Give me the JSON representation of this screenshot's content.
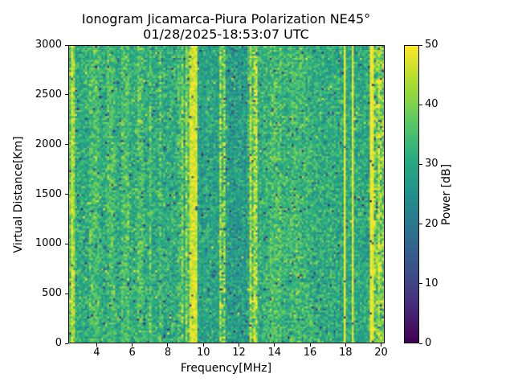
{
  "figure": {
    "title_line1": "Ionogram Jicamarca-Piura Polarization NE45°",
    "title_line2": "01/28/2025-18:53:07 UTC",
    "background_color": "#ffffff",
    "text_color": "#000000"
  },
  "axes": {
    "xlabel": "Frequency[MHz]",
    "ylabel": "Virtual Distance[Km]",
    "x_ticks": [
      4,
      6,
      8,
      10,
      12,
      14,
      16,
      18,
      20
    ],
    "y_ticks": [
      0,
      500,
      1000,
      1500,
      2000,
      2500,
      3000
    ],
    "x_range": [
      2.4,
      20.2
    ],
    "y_range": [
      0,
      3000
    ]
  },
  "colorbar": {
    "label": "Power [dB]",
    "ticks": [
      0,
      10,
      20,
      30,
      40,
      50
    ],
    "range": [
      0,
      50
    ],
    "colormap": "viridis",
    "stops": [
      "#440154",
      "#472d7b",
      "#3b528b",
      "#2c728e",
      "#21918c",
      "#27ad81",
      "#5ec962",
      "#aadc32",
      "#fde725"
    ]
  },
  "chart_data": {
    "type": "heatmap",
    "title": "Ionogram Jicamarca-Piura Polarization NE45° 01/28/2025-18:53:07 UTC",
    "xlabel": "Frequency[MHz]",
    "ylabel": "Virtual Distance[Km]",
    "value_label": "Power [dB]",
    "x_range": [
      2.4,
      20.2
    ],
    "y_range": [
      0,
      3000
    ],
    "value_range": [
      0,
      50
    ],
    "legend_position": "right-colorbar",
    "grid": {
      "cols": 157,
      "rows": 148,
      "seed": 42
    },
    "base": {
      "mean": 31,
      "std": 4.5,
      "dark_speck_prob": 0.018,
      "bright_speck_prob": 0.004
    },
    "description": "Noisy viridis spectrogram filling 0-3000 km at all frequencies; vertical interference stripes at fixed frequencies (mean power in dB per frequency band listed below).",
    "bands": [
      {
        "f0": 2.4,
        "f1": 2.48,
        "mean": 36,
        "std": 5
      },
      {
        "f0": 2.48,
        "f1": 2.62,
        "mean": 46,
        "std": 4
      },
      {
        "f0": 2.62,
        "f1": 2.75,
        "mean": 42,
        "std": 5
      },
      {
        "f0": 3.55,
        "f1": 4.05,
        "mean": 35,
        "std": 4.5
      },
      {
        "f0": 4.55,
        "f1": 5.0,
        "mean": 34.5,
        "std": 4.5
      },
      {
        "f0": 5.3,
        "f1": 5.75,
        "mean": 35,
        "std": 4.5
      },
      {
        "f0": 6.2,
        "f1": 6.55,
        "mean": 35,
        "std": 4.5
      },
      {
        "f0": 6.95,
        "f1": 7.1,
        "mean": 37,
        "std": 4.5
      },
      {
        "f0": 7.5,
        "f1": 7.6,
        "mean": 35,
        "std": 5
      },
      {
        "f0": 8.55,
        "f1": 8.7,
        "mean": 34,
        "std": 5
      },
      {
        "f0": 8.7,
        "f1": 8.82,
        "mean": 39,
        "std": 6
      },
      {
        "f0": 8.95,
        "f1": 9.08,
        "mean": 40,
        "std": 6
      },
      {
        "f0": 9.08,
        "f1": 9.17,
        "mean": 36,
        "std": 5
      },
      {
        "f0": 9.17,
        "f1": 9.62,
        "mean": 47,
        "std": 3
      },
      {
        "f0": 9.62,
        "f1": 10.1,
        "mean": 28.5,
        "std": 4
      },
      {
        "f0": 10.1,
        "f1": 10.55,
        "mean": 29.5,
        "std": 4.5
      },
      {
        "f0": 10.55,
        "f1": 10.85,
        "mean": 28.5,
        "std": 4
      },
      {
        "f0": 10.85,
        "f1": 11.0,
        "mean": 41,
        "std": 7
      },
      {
        "f0": 11.0,
        "f1": 11.1,
        "mean": 34,
        "std": 6
      },
      {
        "f0": 11.1,
        "f1": 11.3,
        "mean": 40,
        "std": 7
      },
      {
        "f0": 11.3,
        "f1": 12.45,
        "mean": 27.5,
        "std": 4.5
      },
      {
        "f0": 12.45,
        "f1": 12.55,
        "mean": 31,
        "std": 5
      },
      {
        "f0": 12.55,
        "f1": 12.75,
        "mean": 44,
        "std": 7
      },
      {
        "f0": 12.75,
        "f1": 12.85,
        "mean": 36,
        "std": 6
      },
      {
        "f0": 12.85,
        "f1": 13.05,
        "mean": 43,
        "std": 7
      },
      {
        "f0": 13.05,
        "f1": 13.35,
        "mean": 31,
        "std": 4.5
      },
      {
        "f0": 13.35,
        "f1": 13.75,
        "mean": 32,
        "std": 4.5
      },
      {
        "f0": 13.75,
        "f1": 14.45,
        "mean": 34.5,
        "std": 4.5
      },
      {
        "f0": 14.45,
        "f1": 14.9,
        "mean": 32,
        "std": 4.5
      },
      {
        "f0": 14.9,
        "f1": 15.55,
        "mean": 34,
        "std": 4.5
      },
      {
        "f0": 15.55,
        "f1": 16.1,
        "mean": 32.5,
        "std": 4.5
      },
      {
        "f0": 16.1,
        "f1": 17.95,
        "mean": 31,
        "std": 4.5
      },
      {
        "f0": 17.95,
        "f1": 18.1,
        "mean": 49,
        "std": 1.5
      },
      {
        "f0": 18.1,
        "f1": 18.4,
        "mean": 30.5,
        "std": 4
      },
      {
        "f0": 18.4,
        "f1": 18.55,
        "mean": 48,
        "std": 2
      },
      {
        "f0": 18.55,
        "f1": 19.38,
        "mean": 30,
        "std": 4.5
      },
      {
        "f0": 19.38,
        "f1": 19.68,
        "mean": 49,
        "std": 1.5
      },
      {
        "f0": 19.68,
        "f1": 19.85,
        "mean": 38,
        "std": 7
      },
      {
        "f0": 19.85,
        "f1": 20.02,
        "mean": 45,
        "std": 5
      },
      {
        "f0": 20.02,
        "f1": 20.2,
        "mean": 40,
        "std": 7
      }
    ]
  }
}
